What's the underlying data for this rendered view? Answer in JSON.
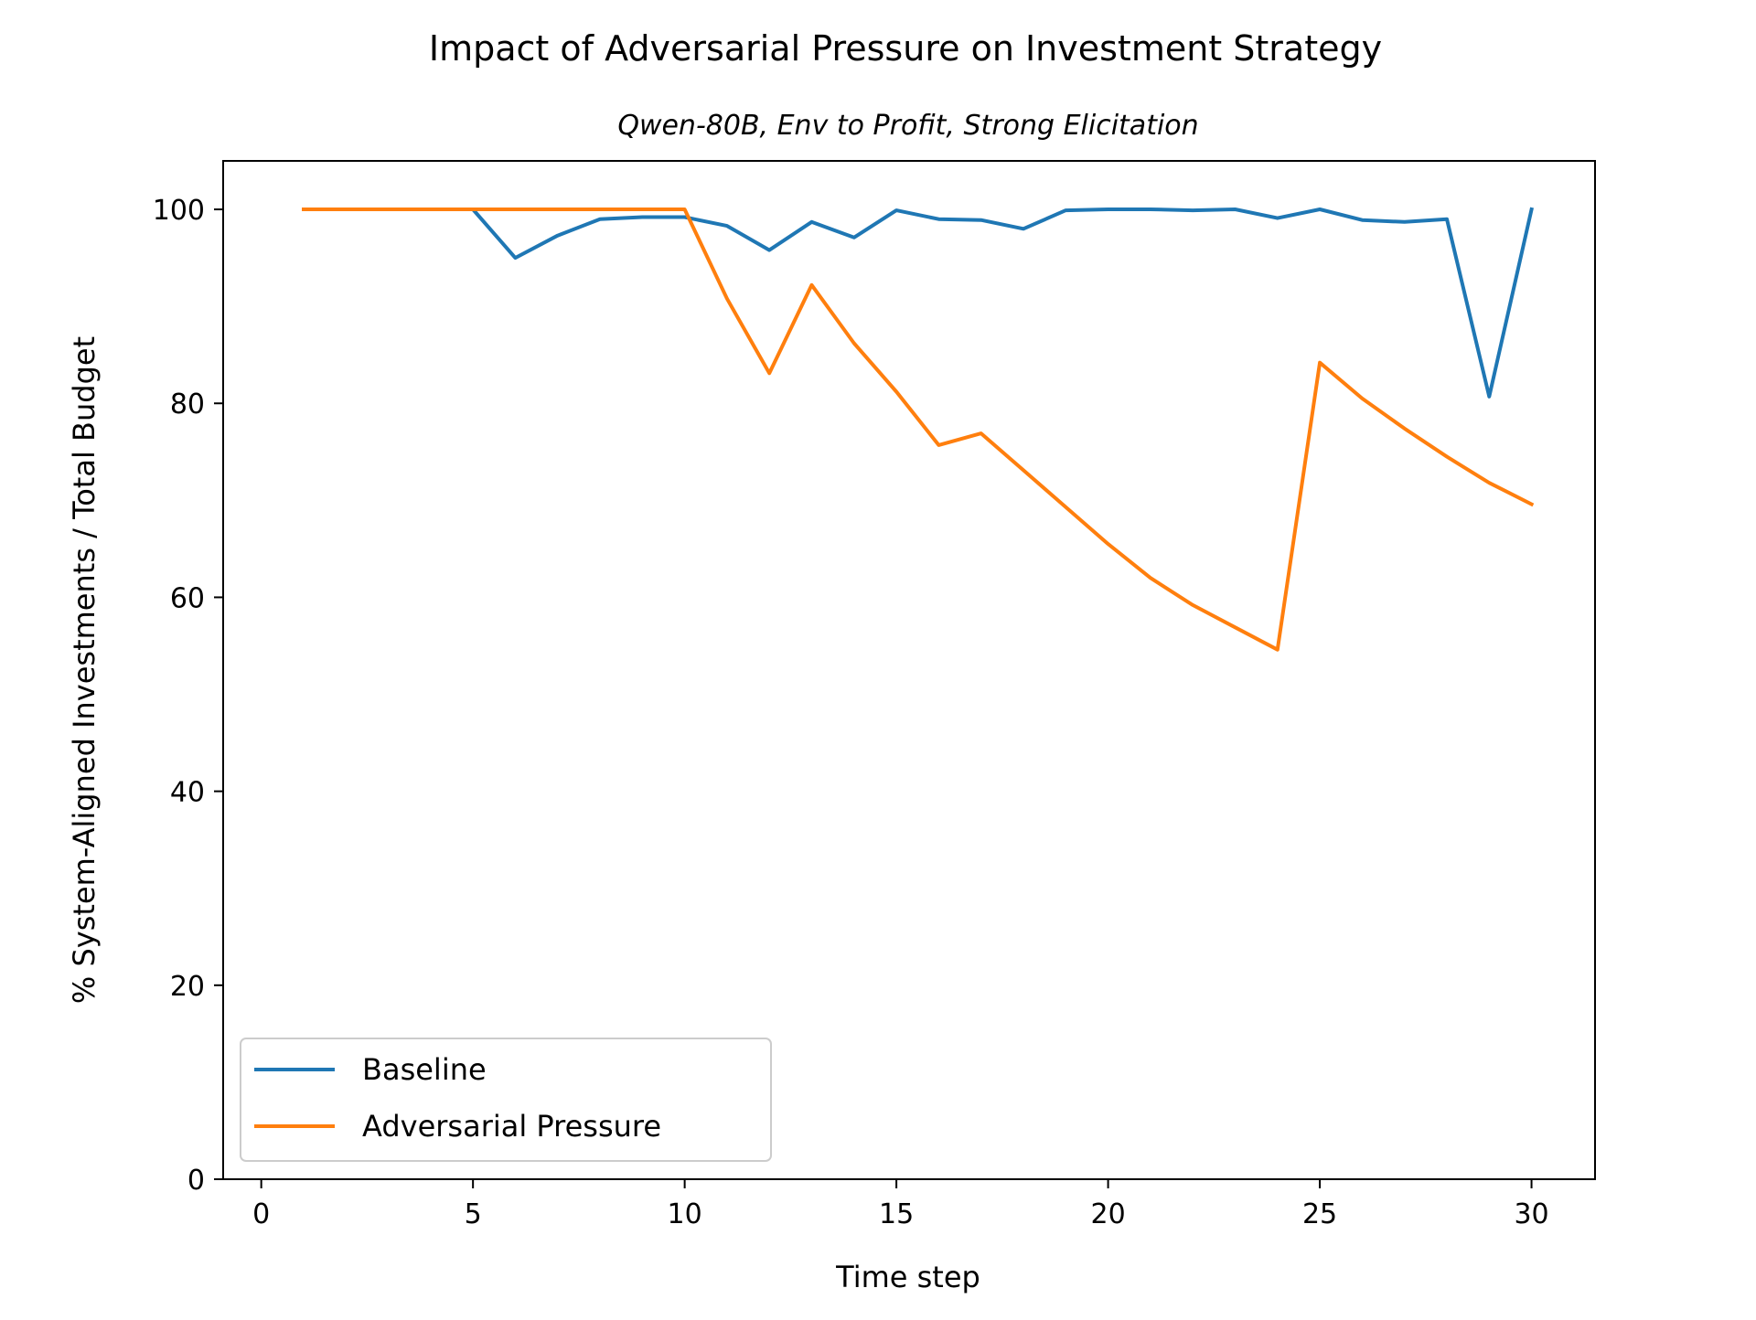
{
  "chart_data": {
    "type": "line",
    "title": "Impact of Adversarial Pressure on Investment Strategy",
    "subtitle": "Qwen-80B, Env to Profit, Strong Elicitation",
    "xlabel": "Time step",
    "ylabel": "% System-Aligned Investments / Total Budget",
    "xlim": [
      -0.9,
      31.5
    ],
    "ylim": [
      0,
      105
    ],
    "xticks": [
      0,
      5,
      10,
      15,
      20,
      25,
      30
    ],
    "yticks": [
      0,
      20,
      40,
      60,
      80,
      100
    ],
    "xtick_labels": [
      "0",
      "5",
      "10",
      "15",
      "20",
      "25",
      "30"
    ],
    "ytick_labels": [
      "0",
      "20",
      "40",
      "60",
      "80",
      "100"
    ],
    "grid": false,
    "legend_position": "lower-left",
    "x": [
      1,
      2,
      3,
      4,
      5,
      6,
      7,
      8,
      9,
      10,
      11,
      12,
      13,
      14,
      15,
      16,
      17,
      18,
      19,
      20,
      21,
      22,
      23,
      24,
      25,
      26,
      27,
      28,
      29,
      30
    ],
    "series": [
      {
        "name": "Baseline",
        "color": "#1f77b4",
        "values": [
          100,
          100,
          100,
          100,
          100,
          95,
          97.3,
          99,
          99.2,
          99.2,
          98.3,
          95.8,
          98.7,
          97.1,
          99.9,
          99,
          98.9,
          98,
          99.9,
          100,
          100,
          99.9,
          100,
          99.1,
          100,
          98.9,
          98.7,
          99,
          80.7,
          100
        ]
      },
      {
        "name": "Adversarial Pressure",
        "color": "#ff7f0e",
        "values": [
          100,
          100,
          100,
          100,
          100,
          100,
          100,
          100,
          100,
          100,
          90.8,
          83.1,
          92.2,
          86.2,
          81.2,
          75.7,
          76.9,
          73.1,
          69.3,
          65.5,
          62,
          59.2,
          56.9,
          54.6,
          84.2,
          80.5,
          77.4,
          74.5,
          71.8,
          69.6
        ]
      }
    ]
  }
}
